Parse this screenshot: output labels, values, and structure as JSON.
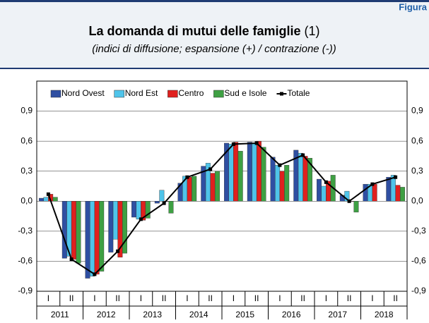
{
  "header": {
    "figure_label": "Figura"
  },
  "chart_data": {
    "type": "bar",
    "title": "La domanda di mutui delle famiglie",
    "title_note": "(1)",
    "subtitle": "(indici di diffusione; espansione (+) / contrazione (-))",
    "categories": [
      "I",
      "II",
      "I",
      "II",
      "I",
      "II",
      "I",
      "II",
      "I",
      "II",
      "I",
      "II",
      "I",
      "II",
      "I",
      "II"
    ],
    "years": [
      "2011",
      "2012",
      "2013",
      "2014",
      "2015",
      "2016",
      "2017",
      "2018"
    ],
    "series": [
      {
        "name": "Nord Ovest",
        "color": "#2f4fa2",
        "values": [
          0.03,
          -0.57,
          -0.77,
          -0.51,
          -0.16,
          -0.02,
          0.18,
          0.35,
          0.58,
          0.59,
          0.44,
          0.51,
          0.22,
          0.06,
          0.17,
          0.24
        ]
      },
      {
        "name": "Nord Est",
        "color": "#4fc4ea",
        "values": [
          0.04,
          -0.55,
          -0.75,
          -0.38,
          -0.18,
          0.11,
          0.25,
          0.38,
          0.57,
          0.58,
          0.36,
          0.48,
          0.15,
          0.1,
          0.17,
          0.26
        ]
      },
      {
        "name": "Centro",
        "color": "#e0201e",
        "values": [
          0.07,
          -0.58,
          -0.73,
          -0.56,
          -0.19,
          0.0,
          0.24,
          0.28,
          0.59,
          0.6,
          0.3,
          0.45,
          0.2,
          0.0,
          0.17,
          0.16
        ]
      },
      {
        "name": "Sud e Isole",
        "color": "#3ea043",
        "values": [
          0.04,
          -0.62,
          -0.7,
          -0.52,
          -0.17,
          -0.12,
          0.25,
          0.3,
          0.5,
          0.54,
          0.36,
          0.43,
          0.26,
          -0.11,
          null,
          0.14
        ]
      },
      {
        "name": "Totale",
        "type": "line",
        "color": "#000000",
        "values": [
          0.07,
          -0.58,
          -0.73,
          -0.5,
          -0.18,
          -0.02,
          0.24,
          0.32,
          0.57,
          0.58,
          0.36,
          0.46,
          0.19,
          0.0,
          0.17,
          0.24
        ]
      }
    ],
    "ylim": [
      -0.9,
      1.2
    ],
    "yticks": [
      {
        "value": -0.9,
        "label": "-0,9"
      },
      {
        "value": -0.6,
        "label": "-0,6"
      },
      {
        "value": -0.3,
        "label": "-0,3"
      },
      {
        "value": 0,
        "label": "0,0"
      },
      {
        "value": 0.3,
        "label": "0,3"
      },
      {
        "value": 0.6,
        "label": "0,6"
      },
      {
        "value": 0.9,
        "label": "0,9"
      }
    ],
    "grid": true,
    "legend": "top"
  }
}
